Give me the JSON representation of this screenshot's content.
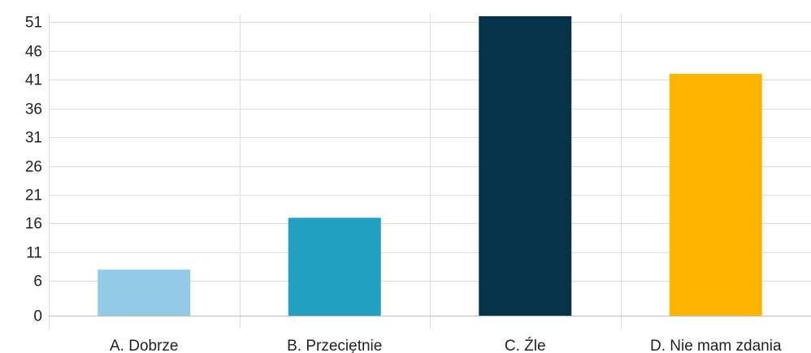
{
  "chart_data": {
    "type": "bar",
    "categories": [
      "A. Dobrze",
      "B. Przeciętnie",
      "C. Źle",
      "D. Nie mam zdania"
    ],
    "values": [
      8,
      17,
      52,
      42
    ],
    "colors": [
      "#93cbe6",
      "#229fc1",
      "#063349",
      "#ffb400"
    ],
    "ylim": [
      0,
      52
    ],
    "yticks": [
      0,
      6,
      11,
      16,
      21,
      26,
      31,
      36,
      41,
      46,
      51
    ],
    "title": "",
    "xlabel": "",
    "ylabel": "",
    "grid": true,
    "legend": "none"
  }
}
